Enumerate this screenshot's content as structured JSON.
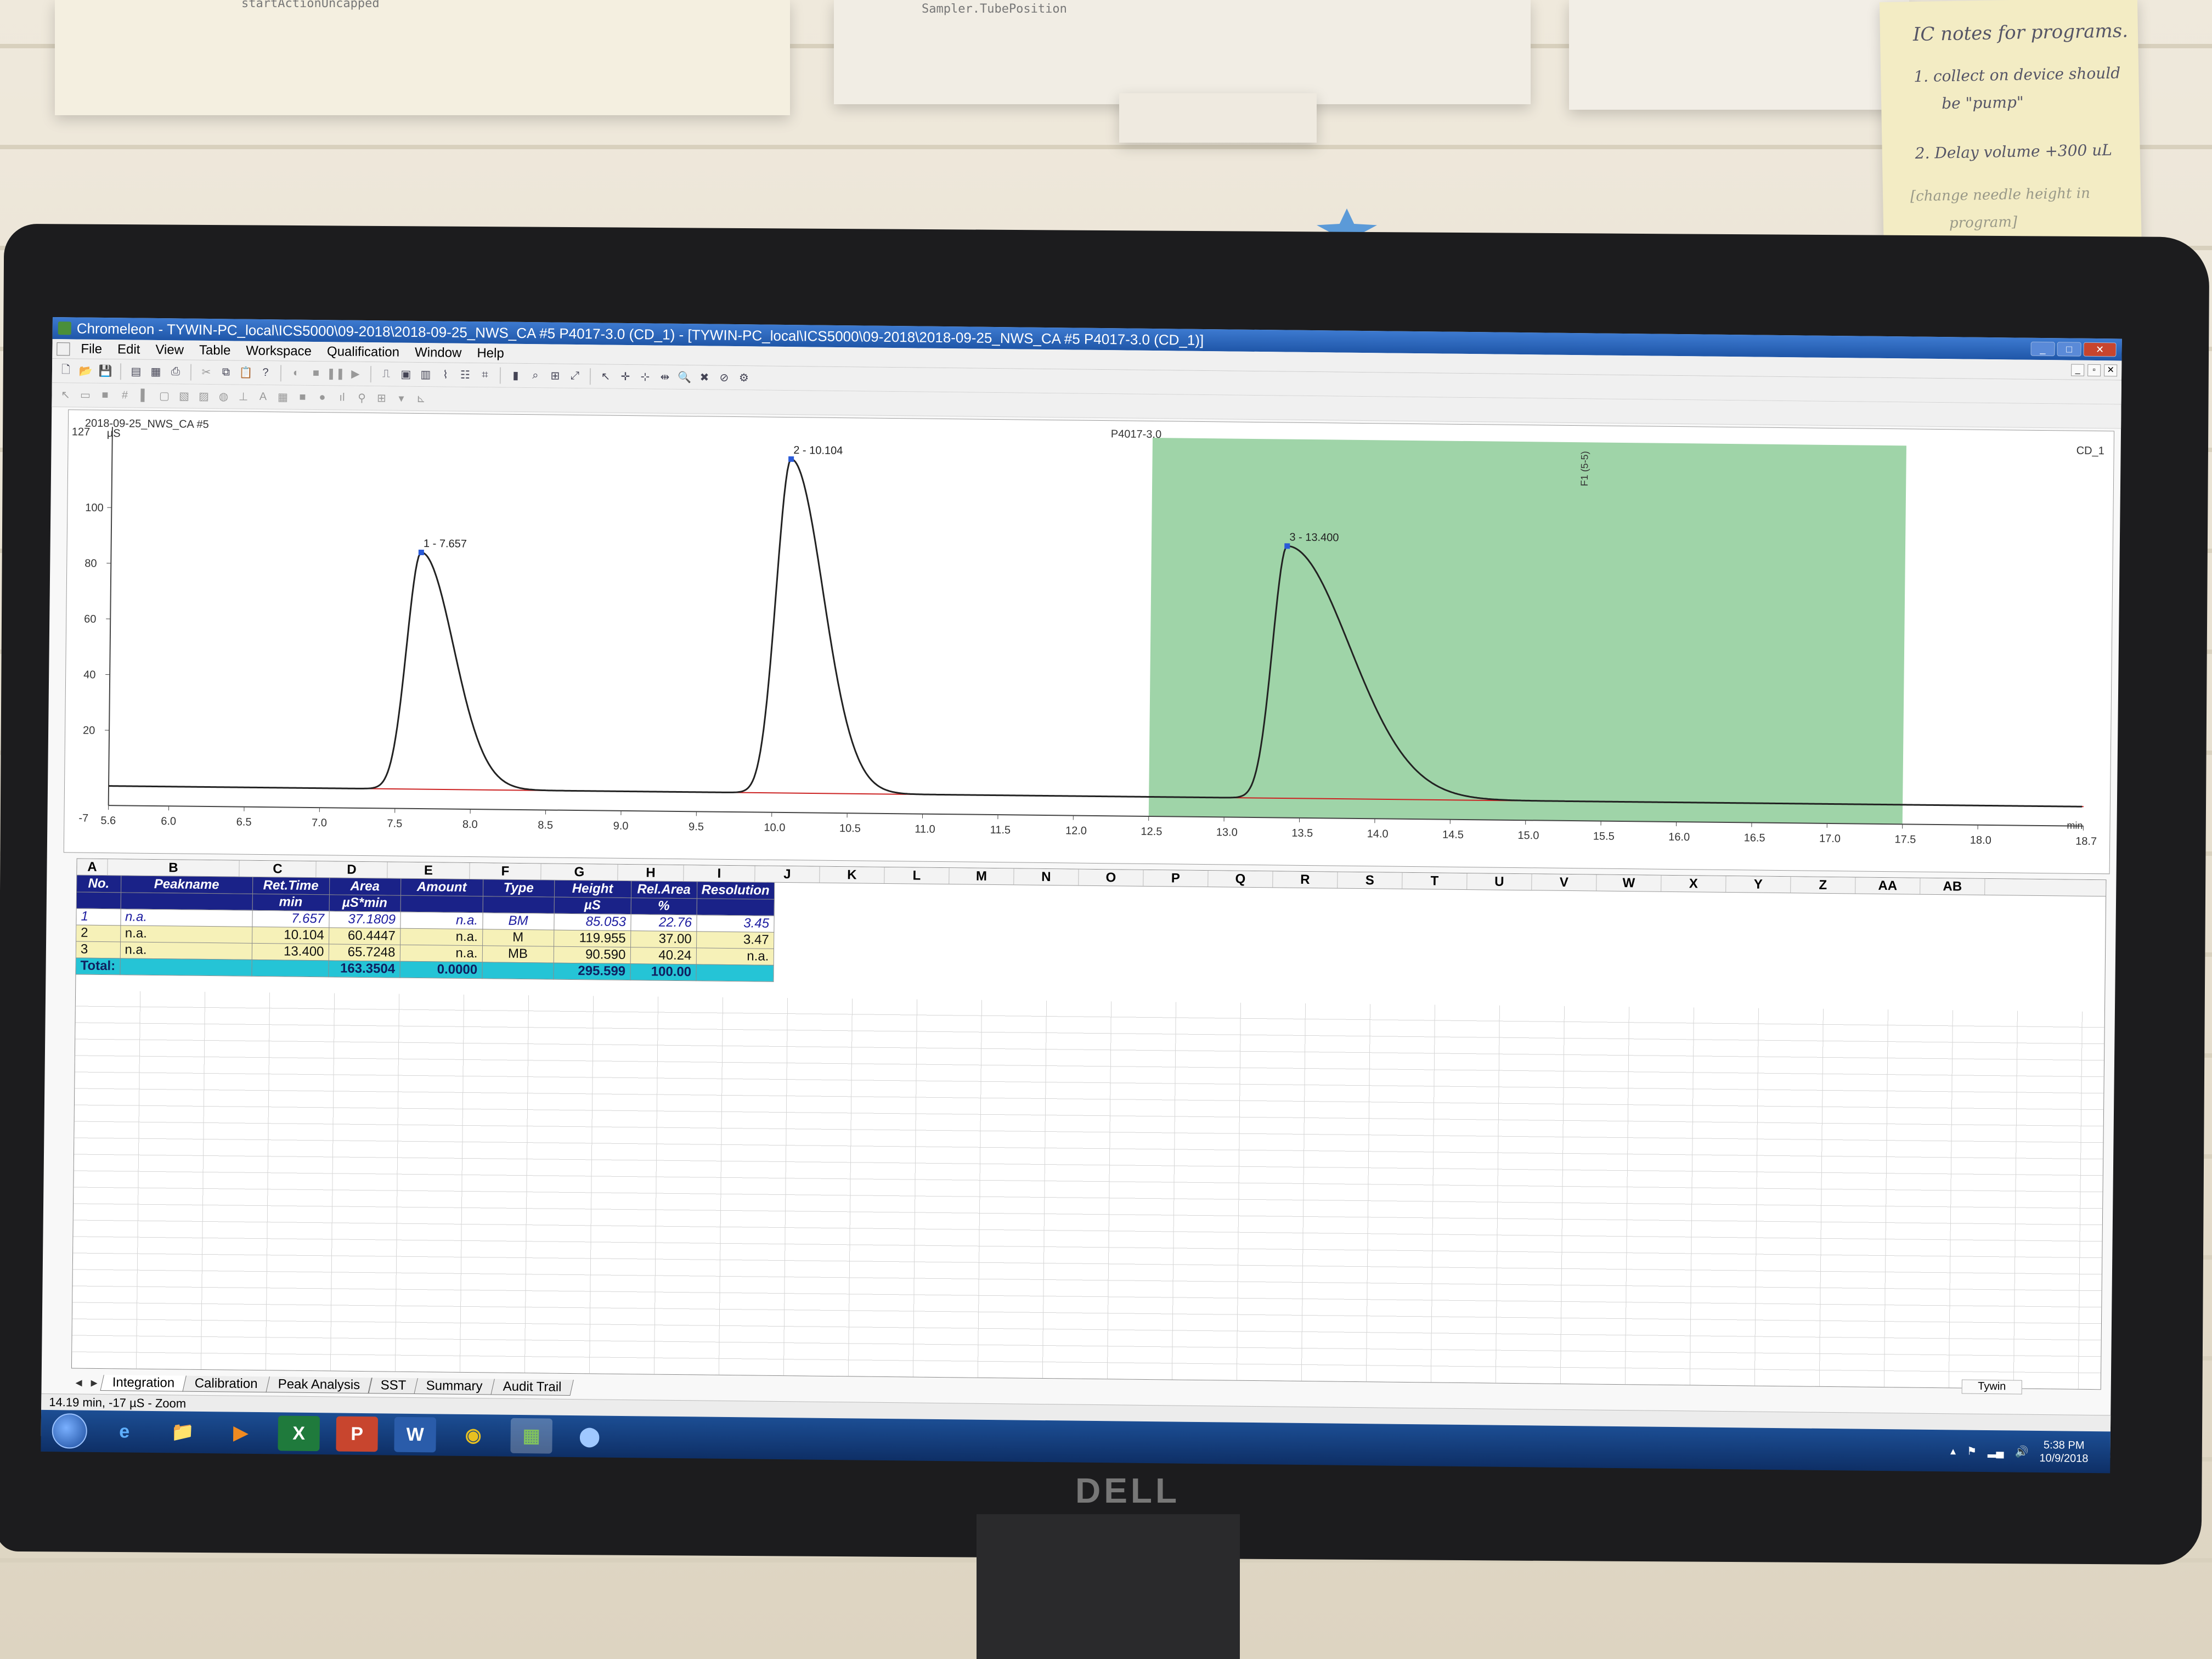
{
  "wall_notes": {
    "paper1_text": "startActionUncapped",
    "paper2_text": "Sampler.TubePosition",
    "sticky": {
      "title": "IC notes for programs.",
      "line1a": "1. collect on device should",
      "line1b": "be \"pump\"",
      "line2": "2. Delay volume +300 uL",
      "line3a": "[change needle height in",
      "line3b": "program]"
    }
  },
  "window": {
    "title": "Chromeleon - TYWIN-PC_local\\ICS5000\\09-2018\\2018-09-25_NWS_CA #5 P4017-3.0 (CD_1) - [TYWIN-PC_local\\ICS5000\\09-2018\\2018-09-25_NWS_CA #5 P4017-3.0 (CD_1)]",
    "minimize": "_",
    "maximize": "□",
    "close": "✕"
  },
  "menu": {
    "items": [
      "File",
      "Edit",
      "View",
      "Table",
      "Workspace",
      "Qualification",
      "Window",
      "Help"
    ]
  },
  "chromatogram": {
    "sample_label": "2018-09-25_NWS_CA #5",
    "program_label": "P4017-3.0",
    "channel_label": "CD_1",
    "y_unit": "µS",
    "x_unit": "min",
    "y_top_label": "127",
    "y_bottom_label": "-7",
    "y_ticks": [
      "100",
      "80",
      "60",
      "40",
      "20"
    ],
    "x_ticks": [
      "5.6",
      "6.0",
      "6.5",
      "7.0",
      "7.5",
      "8.0",
      "8.5",
      "9.0",
      "9.5",
      "10.0",
      "10.5",
      "11.0",
      "11.5",
      "12.0",
      "12.5",
      "13.0",
      "13.5",
      "14.0",
      "14.5",
      "15.0",
      "15.5",
      "16.0",
      "16.5",
      "17.0",
      "17.5",
      "18.0",
      "18.7"
    ],
    "peak_labels": [
      "1 - 7.657",
      "2 - 10.104",
      "3 - 13.400"
    ],
    "marker_label": "F1 (5-5)",
    "highlight_color": "#9fd4a8",
    "trace_color": "#222222",
    "baseline_color": "#cc2222"
  },
  "chart_data": {
    "type": "line",
    "title": "",
    "xlabel": "min",
    "ylabel": "µS",
    "xlim": [
      5.6,
      18.7
    ],
    "ylim": [
      -7,
      127
    ],
    "grid": false,
    "peaks": [
      {
        "label": "1 - 7.657",
        "rt": 7.657,
        "height": 85.053
      },
      {
        "label": "2 - 10.104",
        "rt": 10.104,
        "height": 119.955
      },
      {
        "label": "3 - 13.400",
        "rt": 13.4,
        "height": 90.59
      }
    ],
    "highlight_range": [
      12.5,
      17.5
    ]
  },
  "sheet": {
    "columns": [
      "A",
      "B",
      "C",
      "D",
      "E",
      "F",
      "G",
      "H",
      "I",
      "J",
      "K",
      "L",
      "M",
      "N",
      "O",
      "P",
      "Q",
      "R",
      "S",
      "T",
      "U",
      "V",
      "W",
      "X",
      "Y",
      "Z",
      "AA",
      "AB"
    ],
    "header1": [
      "No.",
      "Peakname",
      "Ret.Time",
      "Area",
      "Amount",
      "Type",
      "Height",
      "Rel.Area",
      "Resolution"
    ],
    "header2": [
      "",
      "",
      "min",
      "µS*min",
      "",
      "",
      "µS",
      "%",
      ""
    ],
    "rows": [
      [
        "1",
        "n.a.",
        "7.657",
        "37.1809",
        "n.a.",
        "BM",
        "85.053",
        "22.76",
        "3.45"
      ],
      [
        "2",
        "n.a.",
        "10.104",
        "60.4447",
        "n.a.",
        "M",
        "119.955",
        "37.00",
        "3.47"
      ],
      [
        "3",
        "n.a.",
        "13.400",
        "65.7248",
        "n.a.",
        "MB",
        "90.590",
        "40.24",
        "n.a."
      ]
    ],
    "total": [
      "Total:",
      "",
      "",
      "163.3504",
      "0.0000",
      "",
      "295.599",
      "100.00",
      ""
    ]
  },
  "tabs": [
    "Integration",
    "Calibration",
    "Peak Analysis",
    "SST",
    "Summary",
    "Audit Trail"
  ],
  "user": "Tywin",
  "status_text": "14.19 min, -17 µS - Zoom",
  "taskbar": {
    "apps": [
      "e",
      "📁",
      "▶",
      "X",
      "P",
      "W",
      "◉",
      "▦",
      "⬤"
    ],
    "time": "5:38 PM",
    "date": "10/9/2018"
  },
  "monitor_brand": "DELL"
}
